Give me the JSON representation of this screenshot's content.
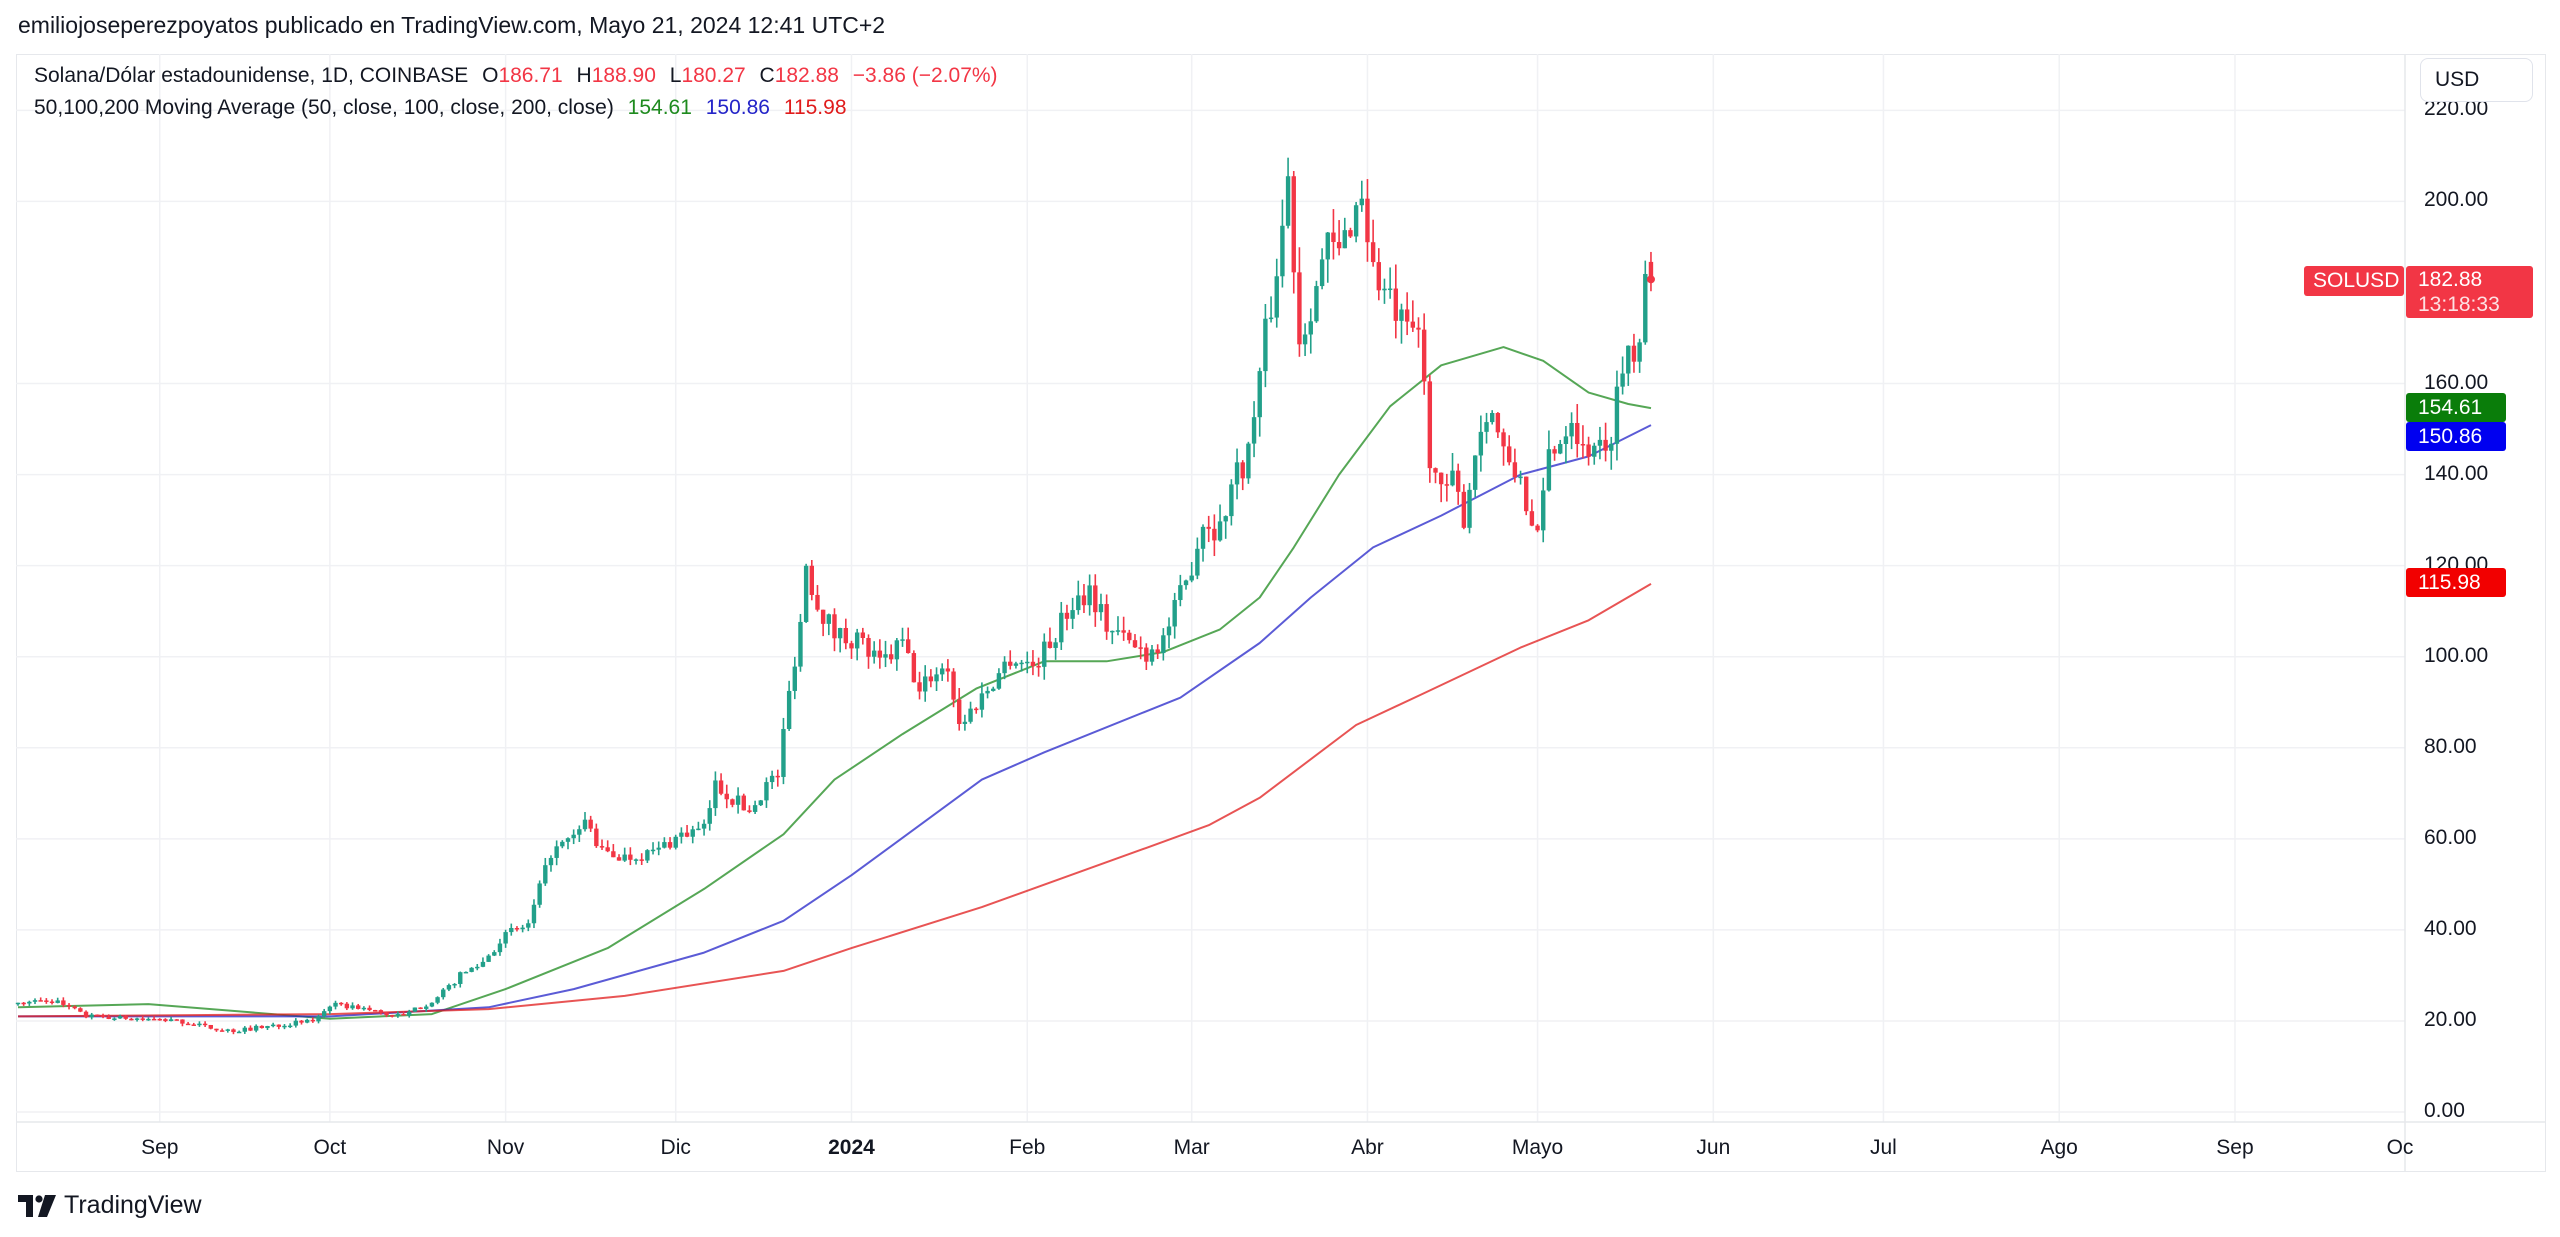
{
  "header": {
    "publish_line": "emiliojoseperezpoyatos publicado en TradingView.com, Mayo 21, 2024 12:41 UTC+2"
  },
  "legend": {
    "symbol": "Solana/Dólar estadounidense, 1D, COINBASE",
    "o_label": "O",
    "o_value": "186.71",
    "h_label": "H",
    "h_value": "188.90",
    "l_label": "L",
    "l_value": "180.27",
    "c_label": "C",
    "c_value": "182.88",
    "change": "−3.86 (−2.07%)",
    "ma_title": "50,100,200 Moving Average (50, close, 100, close, 200, close)",
    "ma50": "154.61",
    "ma100": "150.86",
    "ma200": "115.98"
  },
  "currency_button": "USD",
  "price_tags": {
    "symbol": "SOLUSD",
    "price": "182.88",
    "countdown": "13:18:33",
    "ma50": "154.61",
    "ma100": "150.86",
    "ma200": "115.98"
  },
  "colors": {
    "up": "#22a08a",
    "down": "#f23645",
    "ma50": "#1e8a1e",
    "ma100": "#2424c8",
    "ma200": "#e01b1b",
    "tag": "#f23645",
    "grid": "#f0f1f4"
  },
  "footer": {
    "brand": "TradingView"
  },
  "chart_data": {
    "type": "candlestick",
    "title": "Solana/Dólar estadounidense, 1D, COINBASE",
    "ylim": [
      0,
      220
    ],
    "y_ticks": [
      "0.00",
      "20.00",
      "40.00",
      "60.00",
      "80.00",
      "100.00",
      "120.00",
      "140.00",
      "160.00",
      "200.00",
      "220.00"
    ],
    "y_tick_values": [
      0,
      20,
      40,
      60,
      80,
      100,
      120,
      140,
      160,
      200,
      220
    ],
    "x_ticks": [
      {
        "label": "Sep",
        "day": 25
      },
      {
        "label": "Oct",
        "day": 55
      },
      {
        "label": "Nov",
        "day": 86
      },
      {
        "label": "Dic",
        "day": 116
      },
      {
        "label": "2024",
        "day": 147,
        "bold": true
      },
      {
        "label": "Feb",
        "day": 178
      },
      {
        "label": "Mar",
        "day": 207
      },
      {
        "label": "Abr",
        "day": 238
      },
      {
        "label": "Mayo",
        "day": 268
      },
      {
        "label": "Jun",
        "day": 299
      },
      {
        "label": "Jul",
        "day": 329
      },
      {
        "label": "Ago",
        "day": 360
      },
      {
        "label": "Sep",
        "day": 391
      },
      {
        "label": "Oc",
        "day": 421
      }
    ],
    "x_domain_days": [
      0,
      421
    ],
    "day_zero": "approx. 2023-08-07",
    "close_anchors": [
      [
        0,
        24
      ],
      [
        6,
        24.5
      ],
      [
        9,
        23
      ],
      [
        12,
        21
      ],
      [
        20,
        20.5
      ],
      [
        28,
        20
      ],
      [
        34,
        18.5
      ],
      [
        38,
        17.8
      ],
      [
        45,
        19
      ],
      [
        52,
        20
      ],
      [
        55,
        23.5
      ],
      [
        60,
        23
      ],
      [
        65,
        21.5
      ],
      [
        68,
        21
      ],
      [
        70,
        22.5
      ],
      [
        74,
        25
      ],
      [
        78,
        30
      ],
      [
        82,
        33
      ],
      [
        86,
        39
      ],
      [
        90,
        41
      ],
      [
        94,
        57
      ],
      [
        98,
        60
      ],
      [
        100,
        64
      ],
      [
        103,
        57
      ],
      [
        107,
        56
      ],
      [
        112,
        57
      ],
      [
        117,
        61
      ],
      [
        121,
        62
      ],
      [
        123,
        72
      ],
      [
        126,
        69
      ],
      [
        129,
        66
      ],
      [
        132,
        72
      ],
      [
        134,
        74
      ],
      [
        136,
        92
      ],
      [
        138,
        108
      ],
      [
        139,
        120
      ],
      [
        141,
        112
      ],
      [
        144,
        105
      ],
      [
        148,
        104
      ],
      [
        152,
        98
      ],
      [
        156,
        103
      ],
      [
        159,
        92
      ],
      [
        161,
        96
      ],
      [
        164,
        98
      ],
      [
        166,
        85
      ],
      [
        168,
        88
      ],
      [
        171,
        93
      ],
      [
        175,
        100
      ],
      [
        179,
        98
      ],
      [
        182,
        103
      ],
      [
        186,
        112
      ],
      [
        189,
        115
      ],
      [
        192,
        107
      ],
      [
        196,
        103
      ],
      [
        199,
        101
      ],
      [
        202,
        104
      ],
      [
        206,
        116
      ],
      [
        209,
        130
      ],
      [
        212,
        128
      ],
      [
        214,
        138
      ],
      [
        217,
        145
      ],
      [
        220,
        170
      ],
      [
        222,
        185
      ],
      [
        224,
        205
      ],
      [
        226,
        170
      ],
      [
        228,
        178
      ],
      [
        231,
        190
      ],
      [
        233,
        188
      ],
      [
        235,
        196
      ],
      [
        237,
        202
      ],
      [
        239,
        185
      ],
      [
        241,
        180
      ],
      [
        243,
        175
      ],
      [
        245,
        170
      ],
      [
        247,
        172
      ],
      [
        249,
        145
      ],
      [
        251,
        135
      ],
      [
        253,
        138
      ],
      [
        255,
        131
      ],
      [
        257,
        145
      ],
      [
        259,
        155
      ],
      [
        261,
        150
      ],
      [
        263,
        140
      ],
      [
        265,
        140
      ],
      [
        267,
        128
      ],
      [
        268,
        125
      ],
      [
        270,
        145
      ],
      [
        272,
        148
      ],
      [
        274,
        154
      ],
      [
        276,
        145
      ],
      [
        278,
        148
      ],
      [
        280,
        143
      ],
      [
        282,
        158
      ],
      [
        284,
        168
      ],
      [
        286,
        170
      ],
      [
        287,
        187
      ]
    ],
    "last_bar": {
      "day": 288,
      "open": 186.71,
      "high": 188.9,
      "low": 180.27,
      "close": 182.88
    },
    "series": [
      {
        "name": "MA50",
        "points": [
          [
            0,
            23
          ],
          [
            23,
            23.7
          ],
          [
            55,
            20.5
          ],
          [
            73,
            21.5
          ],
          [
            86,
            27
          ],
          [
            104,
            36
          ],
          [
            121,
            49
          ],
          [
            135,
            61
          ],
          [
            144,
            73
          ],
          [
            156,
            83
          ],
          [
            169,
            93
          ],
          [
            181,
            99
          ],
          [
            192,
            99
          ],
          [
            202,
            101
          ],
          [
            212,
            106
          ],
          [
            219,
            113
          ],
          [
            225,
            124
          ],
          [
            233,
            140
          ],
          [
            242,
            155
          ],
          [
            251,
            164
          ],
          [
            262,
            168
          ],
          [
            269,
            165
          ],
          [
            277,
            158
          ],
          [
            284,
            155.5
          ],
          [
            288,
            154.61
          ]
        ]
      },
      {
        "name": "MA100",
        "points": [
          [
            0,
            21
          ],
          [
            55,
            21
          ],
          [
            83,
            23
          ],
          [
            98,
            27
          ],
          [
            121,
            35
          ],
          [
            135,
            42
          ],
          [
            147,
            52
          ],
          [
            170,
            73
          ],
          [
            181,
            79
          ],
          [
            199,
            88
          ],
          [
            205,
            91
          ],
          [
            219,
            103
          ],
          [
            228,
            113
          ],
          [
            239,
            124
          ],
          [
            251,
            131
          ],
          [
            265,
            140
          ],
          [
            277,
            144
          ],
          [
            288,
            150.86
          ]
        ]
      },
      {
        "name": "MA200",
        "points": [
          [
            0,
            21
          ],
          [
            55,
            21.5
          ],
          [
            83,
            22.6
          ],
          [
            107,
            25.5
          ],
          [
            135,
            31
          ],
          [
            147,
            36
          ],
          [
            170,
            45
          ],
          [
            199,
            58
          ],
          [
            210,
            63
          ],
          [
            219,
            69
          ],
          [
            236,
            85
          ],
          [
            248,
            92
          ],
          [
            265,
            102
          ],
          [
            277,
            108
          ],
          [
            288,
            115.98
          ]
        ]
      }
    ]
  }
}
